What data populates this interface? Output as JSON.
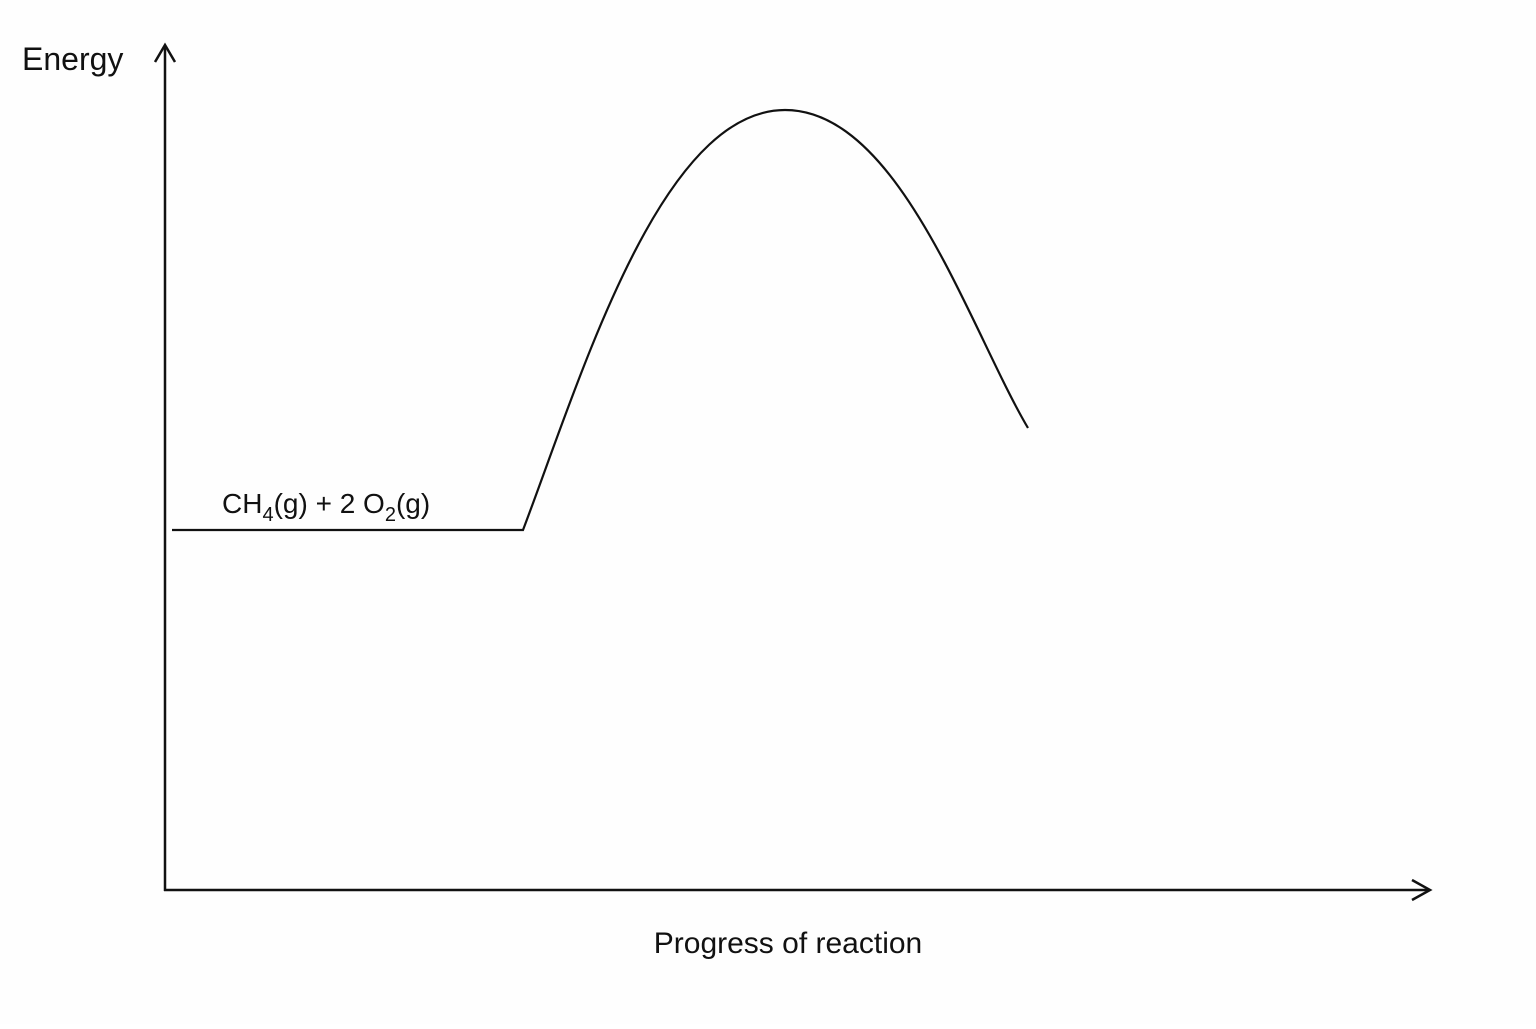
{
  "axes": {
    "y_label": "Energy",
    "x_label": "Progress of reaction"
  },
  "reactants": {
    "parts": [
      "CH",
      "4",
      "(g) + 2 O",
      "2",
      "(g)"
    ]
  }
}
